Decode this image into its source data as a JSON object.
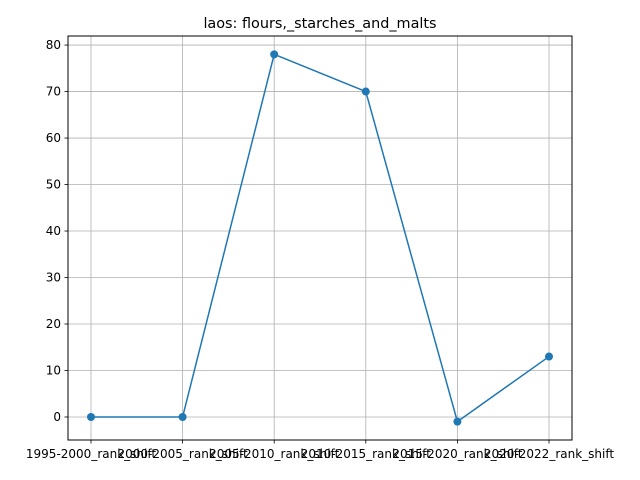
{
  "chart_data": {
    "type": "line",
    "title": "laos: flours,_starches_and_malts",
    "xlabel": "",
    "ylabel": "",
    "categories": [
      "1995-2000_rank_shift",
      "2000-2005_rank_shift",
      "2005-2010_rank_shift",
      "2010-2015_rank_shift",
      "2015-2020_rank_shift",
      "2020-2022_rank_shift"
    ],
    "series": [
      {
        "values": [
          0,
          0,
          78,
          70,
          -1,
          13
        ],
        "color": "#1f77b4"
      }
    ],
    "ylim": [
      -4.95,
      81.95
    ],
    "yticks": [
      0,
      10,
      20,
      30,
      40,
      50,
      60,
      70,
      80
    ],
    "grid": true,
    "legend": "none"
  }
}
